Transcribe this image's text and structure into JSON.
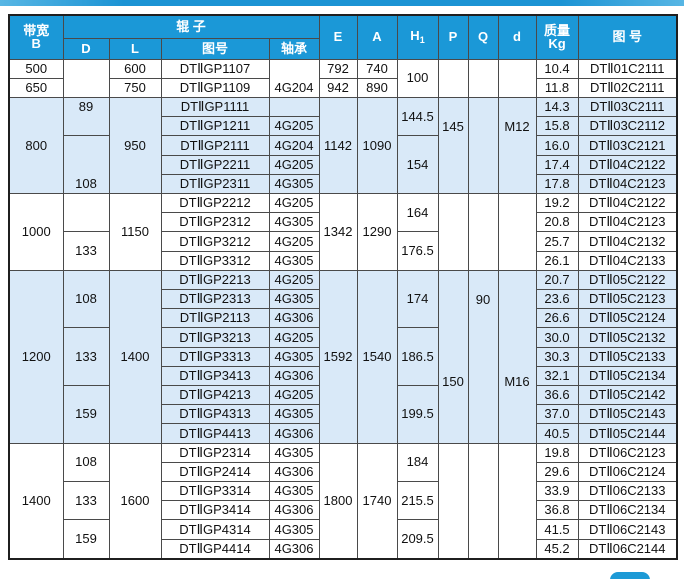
{
  "accent_color": "#1d9ad6",
  "band_color": "#d9e9f8",
  "table": {
    "header": {
      "bandwidth": [
        "带宽",
        "B"
      ],
      "roller_group": "辊  子",
      "sub_d": "D",
      "sub_l": "L",
      "sub_drawing": "图号",
      "sub_bearing": "轴承",
      "e": "E",
      "a": "A",
      "h1_base": "H",
      "h1_sub": "1",
      "p": "P",
      "q": "Q",
      "d_small": "d",
      "mass": [
        "质量",
        "Kg"
      ],
      "drawing_no": "图 号"
    },
    "rows": [
      {
        "band": "w",
        "cells": [
          {
            "t": "500"
          },
          {
            "t": "",
            "rs": 2
          },
          {
            "t": "600"
          },
          {
            "t": "DTⅡGP1107"
          },
          {
            "t": "4G204",
            "rs": 2,
            "cls": "vb"
          },
          {
            "t": "792"
          },
          {
            "t": "740"
          },
          {
            "t": "100",
            "rs": 2
          },
          {
            "t": "",
            "rs": 2
          },
          {
            "t": "",
            "rs": 2
          },
          {
            "t": "",
            "rs": 2
          },
          {
            "t": "10.4"
          },
          {
            "t": "DTⅡ01C2111"
          }
        ]
      },
      {
        "band": "w",
        "cells": [
          {
            "t": "650"
          },
          {
            "t": "750"
          },
          {
            "t": "DTⅡGP1109"
          },
          {
            "t": "942"
          },
          {
            "t": "890"
          },
          {
            "t": "11.8"
          },
          {
            "t": "DTⅡ02C2111"
          }
        ]
      },
      {
        "band": "b",
        "cells": [
          {
            "t": "800",
            "rs": 5
          },
          {
            "t": "89",
            "rs": 2,
            "cls": "vt"
          },
          {
            "t": "950",
            "rs": 5
          },
          {
            "t": "DTⅡGP1111"
          },
          {
            "t": ""
          },
          {
            "t": "1142",
            "rs": 5
          },
          {
            "t": "1090",
            "rs": 5
          },
          {
            "t": "144.5",
            "rs": 2
          },
          {
            "t": "145",
            "rs": 5,
            "cls": "ptA"
          },
          {
            "t": "",
            "rs": 5
          },
          {
            "t": "M12",
            "rs": 5,
            "cls": "ptA"
          },
          {
            "t": "14.3"
          },
          {
            "t": "DTⅡ03C2111"
          }
        ]
      },
      {
        "band": "b",
        "cells": [
          {
            "t": "DTⅡGP1211"
          },
          {
            "t": "4G205"
          },
          {
            "t": "15.8"
          },
          {
            "t": "DTⅡ03C2112"
          }
        ]
      },
      {
        "band": "b",
        "cells": [
          {
            "t": "108",
            "rs": 3,
            "cls": "vb"
          },
          {
            "t": "DTⅡGP2111"
          },
          {
            "t": "4G204"
          },
          {
            "t": "154",
            "rs": 3
          },
          {
            "t": "16.0"
          },
          {
            "t": "DTⅡ03C2121"
          }
        ]
      },
      {
        "band": "b",
        "cells": [
          {
            "t": "DTⅡGP2211"
          },
          {
            "t": "4G205"
          },
          {
            "t": "17.4"
          },
          {
            "t": "DTⅡ04C2122"
          }
        ]
      },
      {
        "band": "b",
        "cells": [
          {
            "t": "DTⅡGP2311"
          },
          {
            "t": "4G305"
          },
          {
            "t": "17.8"
          },
          {
            "t": "DTⅡ04C2123"
          }
        ]
      },
      {
        "band": "w",
        "cells": [
          {
            "t": "1000",
            "rs": 4
          },
          {
            "t": "",
            "rs": 2
          },
          {
            "t": "1150",
            "rs": 4
          },
          {
            "t": "DTⅡGP2212"
          },
          {
            "t": "4G205"
          },
          {
            "t": "1342",
            "rs": 4
          },
          {
            "t": "1290",
            "rs": 4
          },
          {
            "t": "164",
            "rs": 2
          },
          {
            "t": "",
            "rs": 4
          },
          {
            "t": "",
            "rs": 4
          },
          {
            "t": "",
            "rs": 4
          },
          {
            "t": "19.2"
          },
          {
            "t": "DTⅡ04C2122"
          }
        ]
      },
      {
        "band": "w",
        "cells": [
          {
            "t": "DTⅡGP2312"
          },
          {
            "t": "4G305"
          },
          {
            "t": "20.8"
          },
          {
            "t": "DTⅡ04C2123"
          }
        ]
      },
      {
        "band": "w",
        "cells": [
          {
            "t": "133",
            "rs": 2
          },
          {
            "t": "DTⅡGP3212"
          },
          {
            "t": "4G205"
          },
          {
            "t": "176.5",
            "rs": 2
          },
          {
            "t": "25.7"
          },
          {
            "t": "DTⅡ04C2132"
          }
        ]
      },
      {
        "band": "w",
        "cells": [
          {
            "t": "DTⅡGP3312"
          },
          {
            "t": "4G305"
          },
          {
            "t": "26.1"
          },
          {
            "t": "DTⅡ04C2133"
          }
        ]
      },
      {
        "band": "b",
        "cells": [
          {
            "t": "1200",
            "rs": 9
          },
          {
            "t": "108",
            "rs": 3
          },
          {
            "t": "1400",
            "rs": 9
          },
          {
            "t": "DTⅡGP2213"
          },
          {
            "t": "4G205"
          },
          {
            "t": "1592",
            "rs": 9
          },
          {
            "t": "1540",
            "rs": 9
          },
          {
            "t": "174",
            "rs": 3
          },
          {
            "t": "150",
            "rs": 9,
            "cls": "ptB"
          },
          {
            "t": "90",
            "rs": 9,
            "cls": "ptA"
          },
          {
            "t": "M16",
            "rs": 9,
            "cls": "ptB"
          },
          {
            "t": "20.7"
          },
          {
            "t": "DTⅡ05C2122"
          }
        ]
      },
      {
        "band": "b",
        "cells": [
          {
            "t": "DTⅡGP2313"
          },
          {
            "t": "4G305"
          },
          {
            "t": "23.6"
          },
          {
            "t": "DTⅡ05C2123"
          }
        ]
      },
      {
        "band": "b",
        "cells": [
          {
            "t": "DTⅡGP2113"
          },
          {
            "t": "4G306"
          },
          {
            "t": "26.6"
          },
          {
            "t": "DTⅡ05C2124"
          }
        ]
      },
      {
        "band": "b",
        "cells": [
          {
            "t": "133",
            "rs": 3
          },
          {
            "t": "DTⅡGP3213"
          },
          {
            "t": "4G205"
          },
          {
            "t": "186.5",
            "rs": 3
          },
          {
            "t": "30.0"
          },
          {
            "t": "DTⅡ05C2132"
          }
        ]
      },
      {
        "band": "b",
        "cells": [
          {
            "t": "DTⅡGP3313"
          },
          {
            "t": "4G305"
          },
          {
            "t": "30.3"
          },
          {
            "t": "DTⅡ05C2133"
          }
        ]
      },
      {
        "band": "b",
        "cells": [
          {
            "t": "DTⅡGP3413"
          },
          {
            "t": "4G306"
          },
          {
            "t": "32.1"
          },
          {
            "t": "DTⅡ05C2134"
          }
        ]
      },
      {
        "band": "b",
        "cells": [
          {
            "t": "159",
            "rs": 3
          },
          {
            "t": "DTⅡGP4213"
          },
          {
            "t": "4G205"
          },
          {
            "t": "199.5",
            "rs": 3
          },
          {
            "t": "36.6"
          },
          {
            "t": "DTⅡ05C2142"
          }
        ]
      },
      {
        "band": "b",
        "cells": [
          {
            "t": "DTⅡGP4313"
          },
          {
            "t": "4G305"
          },
          {
            "t": "37.0"
          },
          {
            "t": "DTⅡ05C2143"
          }
        ]
      },
      {
        "band": "b",
        "cells": [
          {
            "t": "DTⅡGP4413"
          },
          {
            "t": "4G306"
          },
          {
            "t": "40.5"
          },
          {
            "t": "DTⅡ05C2144"
          }
        ]
      },
      {
        "band": "w",
        "cells": [
          {
            "t": "1400",
            "rs": 6
          },
          {
            "t": "108",
            "rs": 2
          },
          {
            "t": "1600",
            "rs": 6
          },
          {
            "t": "DTⅡGP2314"
          },
          {
            "t": "4G305"
          },
          {
            "t": "1800",
            "rs": 6
          },
          {
            "t": "1740",
            "rs": 6
          },
          {
            "t": "184",
            "rs": 2
          },
          {
            "t": "",
            "rs": 6
          },
          {
            "t": "",
            "rs": 6
          },
          {
            "t": "",
            "rs": 6
          },
          {
            "t": "19.8"
          },
          {
            "t": "DTⅡ06C2123"
          }
        ]
      },
      {
        "band": "w",
        "cells": [
          {
            "t": "DTⅡGP2414"
          },
          {
            "t": "4G306"
          },
          {
            "t": "29.6"
          },
          {
            "t": "DTⅡ06C2124"
          }
        ]
      },
      {
        "band": "w",
        "cells": [
          {
            "t": "133",
            "rs": 2
          },
          {
            "t": "DTⅡGP3314"
          },
          {
            "t": "4G305"
          },
          {
            "t": "215.5",
            "rs": 2
          },
          {
            "t": "33.9"
          },
          {
            "t": "DTⅡ06C2133"
          }
        ]
      },
      {
        "band": "w",
        "cells": [
          {
            "t": "DTⅡGP3414"
          },
          {
            "t": "4G306"
          },
          {
            "t": "36.8"
          },
          {
            "t": "DTⅡ06C2134"
          }
        ]
      },
      {
        "band": "w",
        "cells": [
          {
            "t": "159",
            "rs": 2
          },
          {
            "t": "DTⅡGP4314"
          },
          {
            "t": "4G305"
          },
          {
            "t": "209.5",
            "rs": 2
          },
          {
            "t": "41.5"
          },
          {
            "t": "DTⅡ06C2143"
          }
        ]
      },
      {
        "band": "w",
        "cells": [
          {
            "t": "DTⅡGP4414"
          },
          {
            "t": "4G306"
          },
          {
            "t": "45.2"
          },
          {
            "t": "DTⅡ06C2144"
          }
        ]
      }
    ]
  }
}
